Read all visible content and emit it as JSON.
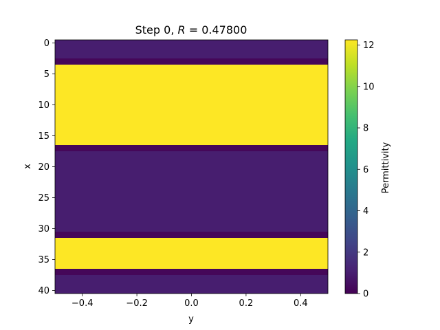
{
  "chart_data": {
    "type": "heatmap",
    "title_prefix": "Step 0, ",
    "title_var": "R",
    "title_eq": " = 0.47800",
    "xlabel": "y",
    "ylabel": "x",
    "colorbar_label": "Permittivity",
    "colormap": "viridis",
    "x_range": [
      -0.5,
      0.5
    ],
    "x_ticks": [
      -0.4,
      -0.2,
      0.0,
      0.2,
      0.4
    ],
    "x_tick_labels": [
      "−0.4",
      "−0.2",
      "0.0",
      "0.2",
      "0.4"
    ],
    "y_range": [
      -0.5,
      40.5
    ],
    "y_inverted": true,
    "y_ticks": [
      0,
      5,
      10,
      15,
      20,
      25,
      30,
      35,
      40
    ],
    "y_tick_labels": [
      "0",
      "5",
      "10",
      "15",
      "20",
      "25",
      "30",
      "35",
      "40"
    ],
    "color_range": [
      0,
      12.25
    ],
    "colorbar_ticks": [
      0,
      2,
      4,
      6,
      8,
      10,
      12
    ],
    "colorbar_tick_labels": [
      "0",
      "2",
      "4",
      "6",
      "8",
      "10",
      "12"
    ],
    "rows": [
      {
        "x_start": 0,
        "x_end": 2,
        "value": 1.0
      },
      {
        "x_start": 3,
        "x_end": 3,
        "value": 0.2
      },
      {
        "x_start": 4,
        "x_end": 16,
        "value": 12.25
      },
      {
        "x_start": 17,
        "x_end": 17,
        "value": 0.2
      },
      {
        "x_start": 18,
        "x_end": 30,
        "value": 1.0
      },
      {
        "x_start": 31,
        "x_end": 31,
        "value": 0.2
      },
      {
        "x_start": 32,
        "x_end": 36,
        "value": 12.25
      },
      {
        "x_start": 37,
        "x_end": 37,
        "value": 0.2
      },
      {
        "x_start": 38,
        "x_end": 40,
        "value": 1.0
      }
    ]
  }
}
